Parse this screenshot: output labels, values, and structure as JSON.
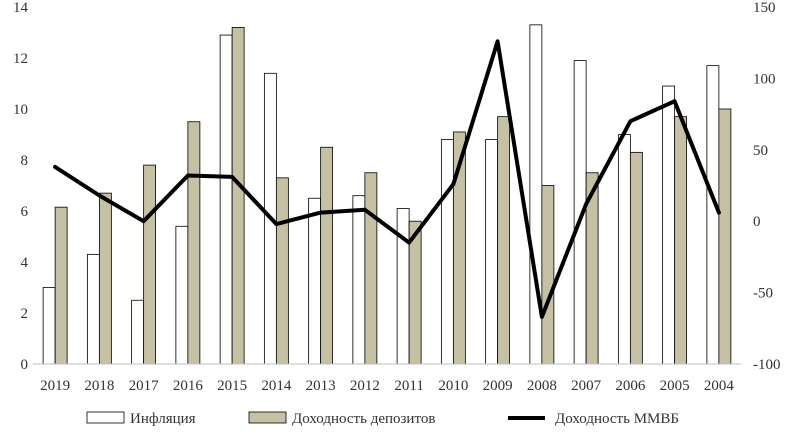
{
  "chart_data": {
    "type": "bar",
    "categories": [
      "2019",
      "2018",
      "2017",
      "2016",
      "2015",
      "2014",
      "2013",
      "2012",
      "2011",
      "2010",
      "2009",
      "2008",
      "2007",
      "2006",
      "2005",
      "2004"
    ],
    "series": [
      {
        "name": "Инфляция",
        "kind": "bar",
        "axis": "left",
        "color": "#ffffff",
        "stroke": "#000000",
        "values": [
          3.0,
          4.3,
          2.5,
          5.4,
          12.9,
          11.4,
          6.5,
          6.6,
          6.1,
          8.8,
          8.8,
          13.3,
          11.9,
          9.0,
          10.9,
          11.7
        ]
      },
      {
        "name": "Доходность депозитов",
        "kind": "bar",
        "axis": "left",
        "color": "#c6c0a4",
        "stroke": "#000000",
        "values": [
          6.15,
          6.7,
          7.8,
          9.5,
          13.2,
          7.3,
          8.5,
          7.5,
          5.6,
          9.1,
          9.7,
          7.0,
          7.5,
          8.3,
          9.7,
          10.0
        ]
      },
      {
        "name": "Доходность ММВБ",
        "kind": "line",
        "axis": "right",
        "color": "#000000",
        "values": [
          38,
          18,
          0,
          32,
          31,
          -2,
          6,
          8,
          -15,
          26,
          126,
          -67,
          12,
          70,
          84,
          6
        ]
      }
    ],
    "left_axis": {
      "ylim": [
        0,
        14
      ],
      "ticks": [
        "0",
        "2",
        "4",
        "6",
        "8",
        "10",
        "12",
        "14"
      ]
    },
    "right_axis": {
      "ylim": [
        -100,
        150
      ],
      "ticks": [
        "-100",
        "-50",
        "0",
        "50",
        "100",
        "150"
      ]
    },
    "title": "",
    "xlabel": "",
    "ylabel": "",
    "grid": false,
    "legend_position": "bottom"
  }
}
